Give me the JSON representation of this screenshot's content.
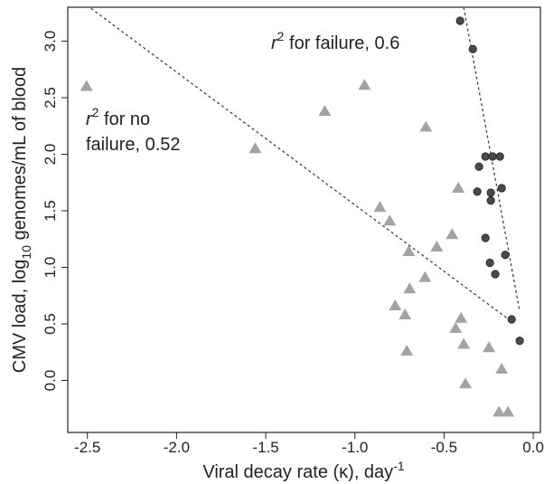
{
  "chart_data": {
    "type": "scatter",
    "x_label": {
      "text": "Viral decay rate (κ), day",
      "sup": "-1"
    },
    "y_label": {
      "text": "CMV load, log",
      "sub": "10",
      "rest": " genomes/mL of blood"
    },
    "xlim": [
      -2.61,
      0.04
    ],
    "xticks": [
      -2.5,
      {
        "value": -2,
        "label": "-2.0"
      },
      -1.5,
      {
        "value": -1,
        "label": "-1.0"
      },
      -0.5,
      {
        "value": 0,
        "label": "0.0"
      }
    ],
    "ylim": [
      -0.46,
      3.3
    ],
    "yticks": [
      {
        "value": 0,
        "label": "0.0"
      },
      0.5,
      {
        "value": 1,
        "label": "1.0"
      },
      1.5,
      {
        "value": 2,
        "label": "2.0"
      },
      2.5,
      {
        "value": 3,
        "label": "3.0"
      }
    ],
    "series": [
      {
        "marker": "triangle",
        "color": "#a3a3a3",
        "x": [
          -2.505,
          -1.559,
          -1.169,
          -0.946,
          -0.602,
          -0.42,
          -0.86,
          -0.805,
          -0.455,
          -0.541,
          -0.698,
          -0.607,
          -0.693,
          -0.774,
          -0.719,
          -0.405,
          -0.435,
          -0.39,
          -0.248,
          -0.709,
          -0.177,
          -0.38,
          -0.192,
          -0.142
        ],
        "values": [
          2.6,
          2.05,
          2.38,
          2.61,
          2.24,
          1.7,
          1.53,
          1.41,
          1.29,
          1.18,
          1.14,
          0.91,
          0.81,
          0.66,
          0.58,
          0.55,
          0.46,
          0.32,
          0.29,
          0.26,
          0.1,
          -0.03,
          -0.28,
          -0.28
        ]
      },
      {
        "marker": "circle",
        "color": "#4a4a4a",
        "x": [
          -0.41,
          -0.339,
          -0.268,
          -0.228,
          -0.187,
          -0.304,
          -0.314,
          -0.238,
          -0.177,
          -0.238,
          -0.268,
          -0.157,
          -0.243,
          -0.213,
          -0.121,
          -0.076
        ],
        "values": [
          3.18,
          2.93,
          1.98,
          1.98,
          1.98,
          1.89,
          1.67,
          1.66,
          1.7,
          1.59,
          1.26,
          1.11,
          1.04,
          0.94,
          0.54,
          0.35
        ]
      }
    ],
    "fit_lines": [
      {
        "x": [
          -2.48,
          -0.147
        ],
        "values": [
          3.29,
          0.55
        ]
      },
      {
        "x": [
          -0.39,
          -0.076
        ],
        "values": [
          3.3,
          0.61
        ]
      }
    ],
    "annotations": [
      {
        "r": "r",
        "exp": "2",
        "lines": [
          " for failure, 0.6"
        ]
      },
      {
        "r": "r",
        "exp": "2",
        "lines": [
          " for no",
          "failure, 0.52"
        ]
      }
    ]
  }
}
